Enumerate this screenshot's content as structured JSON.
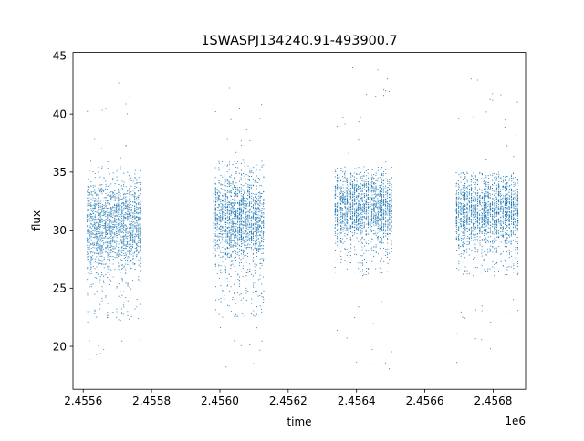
{
  "chart_data": {
    "type": "scatter",
    "title": "1SWASPJ134240.91-493900.7",
    "xlabel": "time",
    "ylabel": "flux",
    "x_offset_label": "1e6",
    "xlim": [
      2455570,
      2456895
    ],
    "ylim": [
      16.3,
      45.3
    ],
    "x_ticks": [
      2455600,
      2455800,
      2456000,
      2456200,
      2456400,
      2456600,
      2456800
    ],
    "x_tick_labels": [
      "2.4556",
      "2.4558",
      "2.4560",
      "2.4562",
      "2.4564",
      "2.4566",
      "2.4568"
    ],
    "y_ticks": [
      20,
      25,
      30,
      35,
      40,
      45
    ],
    "y_tick_labels": [
      "20",
      "25",
      "30",
      "35",
      "40",
      "45"
    ],
    "grid": false,
    "marker_color": "#1f77b4",
    "observing_seasons": [
      {
        "x_start": 2455610,
        "x_end": 2455770,
        "flux_median": 31.5,
        "flux_core_range": [
          22,
          35.5
        ],
        "flux_full_range": [
          18.0,
          42.8
        ]
      },
      {
        "x_start": 2455980,
        "x_end": 2456130,
        "flux_median": 31.5,
        "flux_core_range": [
          22.5,
          36
        ],
        "flux_full_range": [
          17.8,
          43.5
        ]
      },
      {
        "x_start": 2456335,
        "x_end": 2456505,
        "flux_median": 31.0,
        "flux_core_range": [
          26,
          35.5
        ],
        "flux_full_range": [
          17.8,
          44.0
        ]
      },
      {
        "x_start": 2456690,
        "x_end": 2456875,
        "flux_median": 30.5,
        "flux_core_range": [
          26,
          35
        ],
        "flux_full_range": [
          17.8,
          43.2
        ]
      }
    ]
  }
}
